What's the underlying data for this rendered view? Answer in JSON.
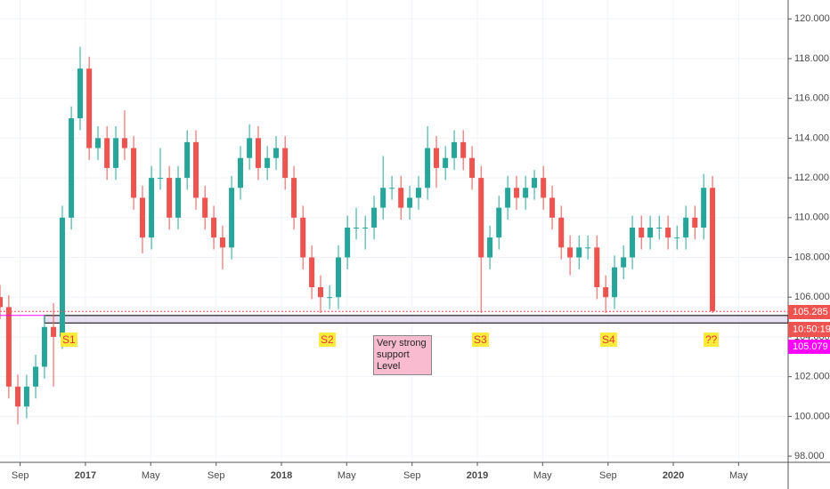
{
  "chart_data": {
    "type": "candlestick",
    "x": [
      2016.564,
      2016.609,
      2016.655,
      2016.7,
      2016.746,
      2016.791,
      2016.837,
      2016.882,
      2016.928,
      2016.973,
      2017.019,
      2017.064,
      2017.11,
      2017.155,
      2017.2,
      2017.246,
      2017.291,
      2017.337,
      2017.382,
      2017.428,
      2017.473,
      2017.519,
      2017.564,
      2017.61,
      2017.655,
      2017.7,
      2017.746,
      2017.791,
      2017.837,
      2017.882,
      2017.928,
      2017.973,
      2018.019,
      2018.064,
      2018.11,
      2018.155,
      2018.2,
      2018.246,
      2018.291,
      2018.337,
      2018.382,
      2018.428,
      2018.473,
      2018.519,
      2018.564,
      2018.61,
      2018.655,
      2018.7,
      2018.746,
      2018.791,
      2018.837,
      2018.882,
      2018.928,
      2018.973,
      2019.019,
      2019.064,
      2019.11,
      2019.155,
      2019.2,
      2019.246,
      2019.291,
      2019.337,
      2019.382,
      2019.428,
      2019.473,
      2019.519,
      2019.564,
      2019.61,
      2019.655,
      2019.7,
      2019.746,
      2019.791,
      2019.837,
      2019.882,
      2019.928,
      2019.973,
      2020.019,
      2020.064,
      2020.11,
      2020.155,
      2020.2
    ],
    "open": [
      106,
      105.5,
      101.5,
      100.5,
      101.5,
      102.5,
      104.5,
      104,
      110,
      115,
      117.5,
      113.5,
      114,
      112.5,
      114,
      113.5,
      111,
      109,
      112,
      112,
      110,
      112,
      113.8,
      111,
      110,
      109,
      108.5,
      111.5,
      113,
      114,
      112.5,
      113,
      113.5,
      112,
      110,
      108,
      106.5,
      106,
      106,
      108,
      109.5,
      109.5,
      109.5,
      110.5,
      111.5,
      111.5,
      110.5,
      111,
      111.5,
      113.5,
      112.5,
      113,
      113.8,
      113,
      112,
      108,
      109,
      110.5,
      111.5,
      111,
      111.5,
      112,
      111,
      110,
      108.5,
      108,
      108.5,
      108.5,
      106.5,
      106,
      107.5,
      108,
      109.5,
      109,
      109.5,
      109.5,
      109,
      109,
      110,
      109.5,
      111.5
    ],
    "high": [
      106.6,
      106.1,
      102.1,
      102.1,
      103.1,
      105.1,
      105.7,
      110.6,
      115.6,
      118.6,
      118.1,
      114.6,
      114.6,
      114.6,
      115.4,
      114.1,
      111.6,
      112.6,
      113.5,
      112.6,
      112.6,
      114.4,
      114.4,
      111.6,
      110.6,
      109.6,
      112.1,
      113.6,
      114.7,
      114.6,
      113.6,
      114.1,
      114.1,
      112.6,
      110.6,
      108.6,
      107.1,
      106.6,
      108.6,
      110.1,
      110.5,
      110.1,
      111.1,
      113.1,
      112.1,
      112.1,
      111.6,
      112.1,
      114.6,
      114.1,
      113.6,
      114.4,
      114.4,
      113.6,
      112.6,
      109.6,
      111.1,
      112.1,
      112.1,
      112.1,
      112.4,
      112.6,
      111.6,
      110.6,
      109.1,
      109.1,
      109.1,
      109.1,
      107.1,
      108.1,
      108.6,
      110.1,
      110.1,
      110.1,
      110.1,
      110.1,
      109.6,
      110.6,
      110.6,
      112.2,
      112.1
    ],
    "low": [
      104.9,
      100.9,
      99.6,
      99.9,
      100.9,
      101.9,
      101.5,
      103.4,
      109.4,
      114.4,
      112.9,
      112.9,
      111.9,
      111.9,
      112.9,
      110.4,
      108.2,
      108.4,
      111.4,
      109.4,
      109.4,
      111.4,
      110.4,
      109.4,
      108.4,
      107.4,
      107.9,
      110.9,
      112.4,
      111.9,
      111.9,
      112.4,
      111.4,
      109.4,
      107.4,
      105.9,
      105.2,
      105.4,
      105.4,
      107.4,
      108.9,
      108.4,
      108.9,
      109.9,
      110.9,
      109.9,
      109.9,
      110.4,
      110.9,
      111.5,
      111.9,
      112.4,
      112.4,
      111.4,
      105.2,
      107.4,
      108.4,
      109.9,
      110.4,
      110.4,
      110.9,
      110.4,
      109.4,
      107.9,
      107.1,
      107.4,
      107.9,
      105.9,
      105.2,
      105.4,
      106.9,
      107.4,
      108.4,
      108.4,
      108.9,
      108.4,
      108.4,
      108.4,
      108.9,
      108.9,
      105.2
    ],
    "close": [
      105.5,
      101.5,
      100.5,
      101.5,
      102.5,
      104.5,
      104,
      110,
      115,
      117.5,
      113.5,
      114,
      112.5,
      114,
      113.5,
      111,
      109,
      112,
      112,
      110,
      112,
      113.8,
      111,
      110,
      109,
      108.5,
      111.5,
      113,
      114,
      112.5,
      113,
      113.5,
      112,
      110,
      108,
      106.5,
      106,
      106,
      108,
      109.5,
      109.5,
      109.5,
      110.5,
      111.5,
      111.5,
      110.5,
      111,
      111.5,
      113.5,
      112.5,
      113,
      113.8,
      113,
      112,
      108,
      109,
      110.5,
      111.5,
      111,
      111.5,
      112,
      111,
      110,
      108.5,
      108,
      108.5,
      108.5,
      106.5,
      106,
      107.5,
      108,
      109.5,
      109,
      109.5,
      109.5,
      109,
      109,
      110,
      109.5,
      111.5,
      105.3
    ],
    "up_color": "#26a69a",
    "down_color": "#ef5350",
    "xlim": [
      2016.564,
      2020.586
    ],
    "xticks": [
      {
        "value": 2016.667,
        "label": "Sep"
      },
      {
        "value": 2017,
        "label": "2017"
      },
      {
        "value": 2017.333,
        "label": "May"
      },
      {
        "value": 2017.667,
        "label": "Sep"
      },
      {
        "value": 2018,
        "label": "2018"
      },
      {
        "value": 2018.333,
        "label": "May"
      },
      {
        "value": 2018.667,
        "label": "Sep"
      },
      {
        "value": 2019,
        "label": "2019"
      },
      {
        "value": 2019.333,
        "label": "May"
      },
      {
        "value": 2019.667,
        "label": "Sep"
      },
      {
        "value": 2020,
        "label": "2020"
      },
      {
        "value": 2020.333,
        "label": "May"
      }
    ],
    "ylim": [
      97.69,
      120.95
    ],
    "yticks": [
      {
        "value": 98,
        "label": "98.000"
      },
      {
        "value": 100,
        "label": "100.000"
      },
      {
        "value": 102,
        "label": "102.000"
      },
      {
        "value": 104,
        "label": "104.000"
      },
      {
        "value": 106,
        "label": "106.000"
      },
      {
        "value": 108,
        "label": "108.000"
      },
      {
        "value": 110,
        "label": "110.000"
      },
      {
        "value": 112,
        "label": "112.000"
      },
      {
        "value": 114,
        "label": "114.000"
      },
      {
        "value": 116,
        "label": "116.000"
      },
      {
        "value": 118,
        "label": "118.000"
      },
      {
        "value": 120,
        "label": "120.000"
      }
    ],
    "grid": true,
    "price_lines": [
      {
        "value": 105.285,
        "label": "105.285",
        "color": "#ef5350"
      },
      {
        "value": 105.079,
        "label": "105.079",
        "color": "#ff00ff"
      }
    ],
    "countdown": "10:50:19",
    "zone": [
      104.7,
      105.079
    ],
    "annotations": [
      "S1",
      "S2",
      "S3",
      "S4",
      "??"
    ],
    "note": "Very strong support Level"
  }
}
